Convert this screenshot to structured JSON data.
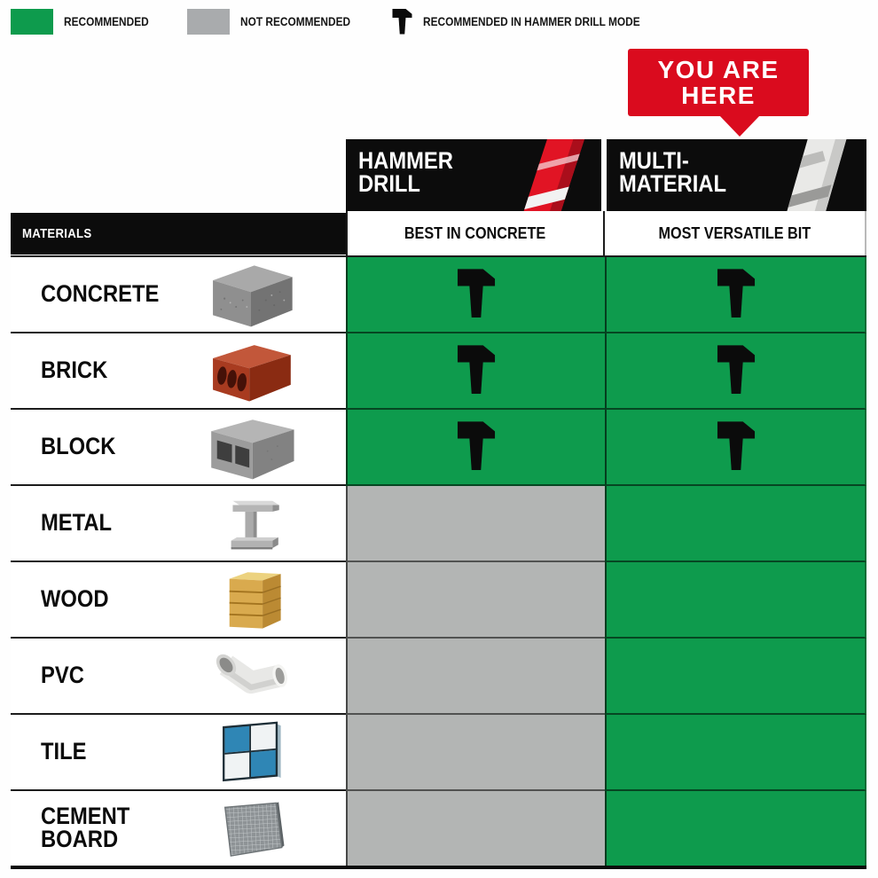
{
  "legend": {
    "items": [
      {
        "type": "swatch",
        "color_name": "green",
        "label": "RECOMMENDED"
      },
      {
        "type": "swatch",
        "color_name": "gray",
        "label": "NOT RECOMMENDED"
      },
      {
        "type": "icon",
        "icon": "hammer-icon",
        "label": "RECOMMENDED IN HAMMER DRILL MODE"
      }
    ]
  },
  "callout": {
    "text": "YOU ARE HERE"
  },
  "materials_header": "MATERIALS",
  "columns": [
    {
      "title": "HAMMER DRILL",
      "subtitle": "BEST IN CONCRETE",
      "bit_image": "red-hammer-drill-bit-image"
    },
    {
      "title": "MULTI-MATERIAL",
      "subtitle": "MOST VERSATILE BIT",
      "bit_image": "white-multi-material-bit-image"
    }
  ],
  "rows": [
    {
      "material": "CONCRETE",
      "image": "concrete-image",
      "hammer_drill": "recommended-hammer-mode",
      "multi_material": "recommended-hammer-mode"
    },
    {
      "material": "BRICK",
      "image": "brick-image",
      "hammer_drill": "recommended-hammer-mode",
      "multi_material": "recommended-hammer-mode"
    },
    {
      "material": "BLOCK",
      "image": "block-image",
      "hammer_drill": "recommended-hammer-mode",
      "multi_material": "recommended-hammer-mode"
    },
    {
      "material": "METAL",
      "image": "metal-ibeam-image",
      "hammer_drill": "not-recommended",
      "multi_material": "recommended"
    },
    {
      "material": "WOOD",
      "image": "wood-image",
      "hammer_drill": "not-recommended",
      "multi_material": "recommended"
    },
    {
      "material": "PVC",
      "image": "pvc-image",
      "hammer_drill": "not-recommended",
      "multi_material": "recommended"
    },
    {
      "material": "TILE",
      "image": "tile-image",
      "hammer_drill": "not-recommended",
      "multi_material": "recommended"
    },
    {
      "material": "CEMENT BOARD",
      "image": "cement-board-image",
      "hammer_drill": "not-recommended",
      "multi_material": "recommended"
    }
  ],
  "chart_data": {
    "type": "table",
    "title": "",
    "columns": [
      "MATERIALS",
      "HAMMER DRILL — BEST IN CONCRETE",
      "MULTI-MATERIAL — MOST VERSATILE BIT"
    ],
    "rows": [
      [
        "CONCRETE",
        "recommended-hammer-mode",
        "recommended-hammer-mode"
      ],
      [
        "BRICK",
        "recommended-hammer-mode",
        "recommended-hammer-mode"
      ],
      [
        "BLOCK",
        "recommended-hammer-mode",
        "recommended-hammer-mode"
      ],
      [
        "METAL",
        "not-recommended",
        "recommended"
      ],
      [
        "WOOD",
        "not-recommended",
        "recommended"
      ],
      [
        "PVC",
        "not-recommended",
        "recommended"
      ],
      [
        "TILE",
        "not-recommended",
        "recommended"
      ],
      [
        "CEMENT BOARD",
        "not-recommended",
        "recommended"
      ]
    ],
    "legend": [
      "RECOMMENDED",
      "NOT RECOMMENDED",
      "RECOMMENDED IN HAMMER DRILL MODE"
    ]
  },
  "colors": {
    "recommended_green": "#0e9b4d",
    "not_recommended_gray": "#b3b5b4",
    "legend_gray": "#a9abad",
    "banner_red": "#da0b1e",
    "header_black": "#0c0c0c"
  }
}
